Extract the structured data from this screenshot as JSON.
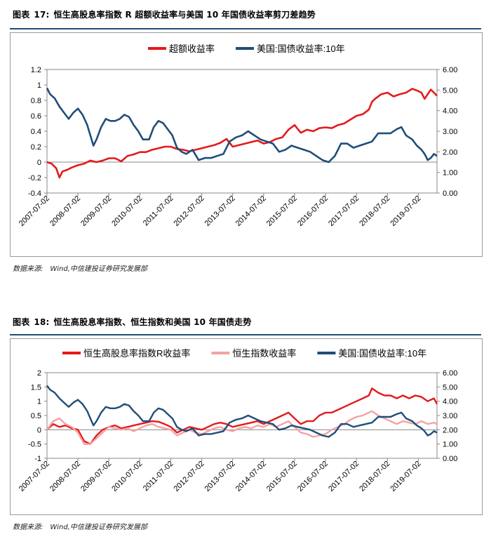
{
  "figure1": {
    "label": "图表",
    "number": "17:",
    "title": "恒生高股息率指数 R 超额收益率与美国 10 年国债收益率剪刀差趋势",
    "source_label": "数据来源:",
    "source_text": "Wind,中信建投证券研究发展部"
  },
  "figure2": {
    "label": "图表",
    "number": "18:",
    "title": "恒生高股息率指数、恒生指数和美国 10 年国债走势",
    "source_label": "数据来源:",
    "source_text": "Wind,中信建投证券研究发展部"
  },
  "chart_data": [
    {
      "type": "line",
      "title": "恒生高股息率指数 R 超额收益率与美国 10 年国债收益率剪刀差趋势",
      "x_tick_labels": [
        "2007-07-02",
        "2008-07-02",
        "2009-07-02",
        "2010-07-02",
        "2011-07-02",
        "2012-07-02",
        "2013-07-02",
        "2014-07-02",
        "2015-07-02",
        "2016-07-02",
        "2017-07-02",
        "2018-07-02",
        "2019-07-02"
      ],
      "x_range": [
        2007.5,
        2020.1
      ],
      "y_left": {
        "ticks": [
          "1.2",
          "1",
          "0.8",
          "0.6",
          "0.4",
          "0.2",
          "0",
          "-0.2",
          "-0.4"
        ],
        "ylim": [
          -0.4,
          1.2
        ]
      },
      "y_right": {
        "ticks": [
          "6.00",
          "5.00",
          "4.00",
          "3.00",
          "2.00",
          "1.00",
          "0.00"
        ],
        "ylim": [
          0,
          6
        ]
      },
      "legend_position": "top-center",
      "series": [
        {
          "name": "超额收益率",
          "axis": "left",
          "color": "#e41a1c",
          "width": 2.6,
          "x": [
            2007.5,
            2007.65,
            2007.8,
            2007.9,
            2008.0,
            2008.15,
            2008.3,
            2008.5,
            2008.7,
            2008.9,
            2009.1,
            2009.3,
            2009.5,
            2009.7,
            2009.9,
            2010.1,
            2010.3,
            2010.5,
            2010.7,
            2010.9,
            2011.1,
            2011.3,
            2011.5,
            2011.7,
            2011.9,
            2012.1,
            2012.3,
            2012.5,
            2012.7,
            2012.9,
            2013.1,
            2013.3,
            2013.5,
            2013.7,
            2013.9,
            2014.1,
            2014.3,
            2014.5,
            2014.7,
            2014.9,
            2015.1,
            2015.3,
            2015.5,
            2015.7,
            2015.9,
            2016.1,
            2016.3,
            2016.5,
            2016.7,
            2016.9,
            2017.1,
            2017.3,
            2017.5,
            2017.7,
            2017.9,
            2018.0,
            2018.1,
            2018.3,
            2018.5,
            2018.7,
            2018.9,
            2019.1,
            2019.3,
            2019.5,
            2019.6,
            2019.7,
            2019.8,
            2019.9,
            2020.0,
            2020.1
          ],
          "y": [
            0.0,
            -0.02,
            -0.08,
            -0.2,
            -0.12,
            -0.1,
            -0.07,
            -0.04,
            -0.02,
            0.02,
            0.0,
            0.02,
            0.05,
            0.05,
            0.01,
            0.08,
            0.1,
            0.13,
            0.13,
            0.16,
            0.18,
            0.2,
            0.2,
            0.17,
            0.16,
            0.14,
            0.16,
            0.18,
            0.2,
            0.22,
            0.25,
            0.3,
            0.2,
            0.22,
            0.24,
            0.26,
            0.28,
            0.24,
            0.26,
            0.3,
            0.32,
            0.42,
            0.48,
            0.38,
            0.42,
            0.4,
            0.44,
            0.45,
            0.44,
            0.48,
            0.5,
            0.55,
            0.6,
            0.62,
            0.68,
            0.78,
            0.82,
            0.88,
            0.9,
            0.85,
            0.88,
            0.9,
            0.95,
            0.92,
            0.9,
            0.82,
            0.88,
            0.94,
            0.9,
            0.86
          ]
        },
        {
          "name": "美国:国债收益率:10年",
          "axis": "right",
          "color": "#1f4e79",
          "width": 2.6,
          "x": [
            2007.5,
            2007.6,
            2007.75,
            2007.9,
            2008.05,
            2008.2,
            2008.35,
            2008.5,
            2008.65,
            2008.8,
            2008.9,
            2009.0,
            2009.1,
            2009.25,
            2009.4,
            2009.55,
            2009.7,
            2009.85,
            2010.0,
            2010.15,
            2010.3,
            2010.45,
            2010.6,
            2010.8,
            2010.95,
            2011.1,
            2011.25,
            2011.4,
            2011.55,
            2011.7,
            2011.85,
            2012.0,
            2012.2,
            2012.4,
            2012.6,
            2012.8,
            2013.0,
            2013.2,
            2013.4,
            2013.6,
            2013.8,
            2014.0,
            2014.2,
            2014.4,
            2014.6,
            2014.8,
            2015.0,
            2015.2,
            2015.4,
            2015.6,
            2015.8,
            2016.0,
            2016.2,
            2016.4,
            2016.6,
            2016.8,
            2017.0,
            2017.2,
            2017.4,
            2017.6,
            2017.8,
            2018.0,
            2018.2,
            2018.4,
            2018.6,
            2018.8,
            2018.95,
            2019.1,
            2019.3,
            2019.45,
            2019.6,
            2019.7,
            2019.8,
            2019.9,
            2020.0,
            2020.1
          ],
          "y": [
            5.1,
            4.8,
            4.6,
            4.2,
            3.9,
            3.6,
            3.9,
            4.1,
            3.8,
            3.3,
            2.8,
            2.3,
            2.6,
            3.2,
            3.6,
            3.5,
            3.5,
            3.6,
            3.8,
            3.7,
            3.3,
            3.0,
            2.6,
            2.6,
            3.2,
            3.5,
            3.4,
            3.1,
            2.8,
            2.2,
            2.0,
            1.9,
            2.1,
            1.6,
            1.7,
            1.7,
            1.8,
            1.9,
            2.5,
            2.7,
            2.8,
            3.0,
            2.8,
            2.6,
            2.5,
            2.4,
            2.0,
            2.1,
            2.3,
            2.2,
            2.1,
            2.0,
            1.8,
            1.6,
            1.5,
            1.8,
            2.4,
            2.4,
            2.2,
            2.3,
            2.4,
            2.5,
            2.9,
            2.9,
            2.9,
            3.1,
            3.2,
            2.8,
            2.6,
            2.3,
            2.1,
            1.9,
            1.6,
            1.7,
            1.9,
            1.8
          ]
        }
      ]
    },
    {
      "type": "line",
      "title": "恒生高股息率指数、恒生指数和美国 10 年国债走势",
      "x_tick_labels": [
        "2007-07-02",
        "2008-07-02",
        "2009-07-02",
        "2010-07-02",
        "2011-07-02",
        "2012-07-02",
        "2013-07-02",
        "2014-07-02",
        "2015-07-02",
        "2016-07-02",
        "2017-07-02",
        "2018-07-02",
        "2019-07-02"
      ],
      "x_range": [
        2007.5,
        2020.1
      ],
      "y_left": {
        "ticks": [
          "2",
          "1.5",
          "1",
          "0.5",
          "0",
          "-0.5",
          "-1"
        ],
        "ylim": [
          -1,
          2
        ]
      },
      "y_right": {
        "ticks": [
          "6.00",
          "5.00",
          "4.00",
          "3.00",
          "2.00",
          "1.00",
          "0.00"
        ],
        "ylim": [
          0,
          6
        ]
      },
      "legend_position": "top-center",
      "series": [
        {
          "name": "恒生高股息率指数R收益率",
          "axis": "left",
          "color": "#e41a1c",
          "width": 2.4,
          "x": [
            2007.5,
            2007.7,
            2007.9,
            2008.1,
            2008.3,
            2008.5,
            2008.7,
            2008.9,
            2009.1,
            2009.3,
            2009.5,
            2009.7,
            2009.9,
            2010.1,
            2010.3,
            2010.5,
            2010.7,
            2010.9,
            2011.1,
            2011.3,
            2011.5,
            2011.7,
            2011.9,
            2012.1,
            2012.3,
            2012.5,
            2012.7,
            2012.9,
            2013.1,
            2013.3,
            2013.5,
            2013.7,
            2013.9,
            2014.1,
            2014.3,
            2014.5,
            2014.7,
            2014.9,
            2015.1,
            2015.3,
            2015.5,
            2015.7,
            2015.9,
            2016.1,
            2016.3,
            2016.5,
            2016.7,
            2016.9,
            2017.1,
            2017.3,
            2017.5,
            2017.7,
            2017.9,
            2018.0,
            2018.2,
            2018.4,
            2018.6,
            2018.8,
            2019.0,
            2019.2,
            2019.4,
            2019.6,
            2019.8,
            2020.0,
            2020.1
          ],
          "y": [
            0.0,
            0.2,
            0.1,
            0.15,
            0.05,
            0.0,
            -0.4,
            -0.5,
            -0.2,
            0.0,
            0.1,
            0.15,
            0.05,
            0.1,
            0.15,
            0.2,
            0.25,
            0.3,
            0.28,
            0.2,
            0.1,
            -0.1,
            0.0,
            0.1,
            0.05,
            0.0,
            0.1,
            0.2,
            0.25,
            0.2,
            0.1,
            0.15,
            0.2,
            0.25,
            0.3,
            0.2,
            0.3,
            0.4,
            0.5,
            0.6,
            0.4,
            0.2,
            0.3,
            0.3,
            0.5,
            0.6,
            0.6,
            0.7,
            0.8,
            0.9,
            1.0,
            1.1,
            1.2,
            1.45,
            1.3,
            1.2,
            1.2,
            1.1,
            1.2,
            1.1,
            1.2,
            1.15,
            1.0,
            1.1,
            0.9
          ]
        },
        {
          "name": "恒生指数收益率",
          "axis": "left",
          "color": "#f4a3a3",
          "width": 2.4,
          "x": [
            2007.5,
            2007.7,
            2007.9,
            2008.1,
            2008.3,
            2008.5,
            2008.7,
            2008.9,
            2009.1,
            2009.3,
            2009.5,
            2009.7,
            2009.9,
            2010.1,
            2010.3,
            2010.5,
            2010.7,
            2010.9,
            2011.1,
            2011.3,
            2011.5,
            2011.7,
            2011.9,
            2012.1,
            2012.3,
            2012.5,
            2012.7,
            2012.9,
            2013.1,
            2013.3,
            2013.5,
            2013.7,
            2013.9,
            2014.1,
            2014.3,
            2014.5,
            2014.7,
            2014.9,
            2015.1,
            2015.3,
            2015.5,
            2015.7,
            2015.9,
            2016.1,
            2016.3,
            2016.5,
            2016.7,
            2016.9,
            2017.1,
            2017.3,
            2017.5,
            2017.7,
            2017.9,
            2018.0,
            2018.2,
            2018.4,
            2018.6,
            2018.8,
            2019.0,
            2019.2,
            2019.4,
            2019.6,
            2019.8,
            2020.0,
            2020.1
          ],
          "y": [
            0.0,
            0.3,
            0.4,
            0.2,
            0.1,
            -0.1,
            -0.5,
            -0.5,
            -0.3,
            -0.1,
            0.1,
            0.05,
            0.0,
            0.05,
            -0.05,
            0.05,
            0.15,
            0.2,
            0.1,
            0.05,
            0.0,
            -0.2,
            -0.1,
            0.0,
            -0.1,
            -0.15,
            -0.05,
            0.05,
            0.1,
            0.0,
            -0.05,
            0.05,
            0.1,
            0.05,
            0.15,
            0.1,
            0.2,
            0.1,
            0.2,
            0.3,
            0.1,
            -0.1,
            -0.15,
            -0.25,
            -0.2,
            -0.15,
            0.0,
            0.1,
            0.2,
            0.35,
            0.45,
            0.5,
            0.6,
            0.65,
            0.5,
            0.4,
            0.3,
            0.2,
            0.3,
            0.25,
            0.2,
            0.3,
            0.2,
            0.25,
            0.2
          ]
        },
        {
          "name": "美国:国债收益率:10年",
          "axis": "right",
          "color": "#1f4e79",
          "width": 2.4,
          "x": [
            2007.5,
            2007.6,
            2007.75,
            2007.9,
            2008.05,
            2008.2,
            2008.35,
            2008.5,
            2008.65,
            2008.8,
            2008.9,
            2009.0,
            2009.1,
            2009.25,
            2009.4,
            2009.55,
            2009.7,
            2009.85,
            2010.0,
            2010.15,
            2010.3,
            2010.45,
            2010.6,
            2010.8,
            2010.95,
            2011.1,
            2011.25,
            2011.4,
            2011.55,
            2011.7,
            2011.85,
            2012.0,
            2012.2,
            2012.4,
            2012.6,
            2012.8,
            2013.0,
            2013.2,
            2013.4,
            2013.6,
            2013.8,
            2014.0,
            2014.2,
            2014.4,
            2014.6,
            2014.8,
            2015.0,
            2015.2,
            2015.4,
            2015.6,
            2015.8,
            2016.0,
            2016.2,
            2016.4,
            2016.6,
            2016.8,
            2017.0,
            2017.2,
            2017.4,
            2017.6,
            2017.8,
            2018.0,
            2018.2,
            2018.4,
            2018.6,
            2018.8,
            2018.95,
            2019.1,
            2019.3,
            2019.45,
            2019.6,
            2019.7,
            2019.8,
            2019.9,
            2020.0,
            2020.1
          ],
          "y": [
            5.1,
            4.8,
            4.6,
            4.2,
            3.9,
            3.6,
            3.9,
            4.1,
            3.8,
            3.3,
            2.8,
            2.3,
            2.6,
            3.2,
            3.6,
            3.5,
            3.5,
            3.6,
            3.8,
            3.7,
            3.3,
            3.0,
            2.6,
            2.6,
            3.2,
            3.5,
            3.4,
            3.1,
            2.8,
            2.2,
            2.0,
            1.9,
            2.1,
            1.6,
            1.7,
            1.7,
            1.8,
            1.9,
            2.5,
            2.7,
            2.8,
            3.0,
            2.8,
            2.6,
            2.5,
            2.4,
            2.0,
            2.1,
            2.3,
            2.2,
            2.1,
            2.0,
            1.8,
            1.6,
            1.5,
            1.8,
            2.4,
            2.4,
            2.2,
            2.3,
            2.4,
            2.5,
            2.9,
            2.9,
            2.9,
            3.1,
            3.2,
            2.8,
            2.6,
            2.3,
            2.1,
            1.9,
            1.6,
            1.7,
            1.9,
            1.8
          ]
        }
      ]
    }
  ]
}
